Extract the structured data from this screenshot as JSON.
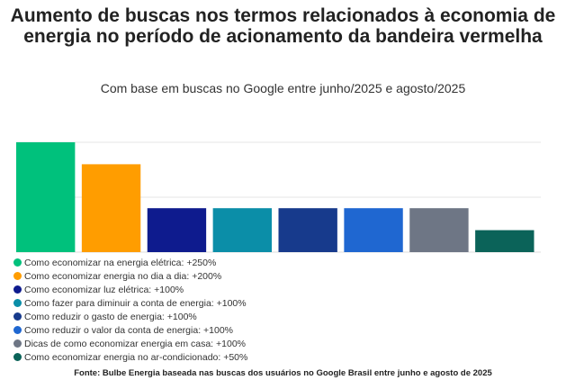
{
  "chart_data": {
    "type": "bar",
    "title": "Aumento de buscas nos termos relacionados à economia de energia no período de acionamento da bandeira vermelha",
    "subtitle": "Com base em buscas no Google entre junho/2025 e agosto/2025",
    "categories": [
      "Como economizar na energia elétrica",
      "Como economizar energia no dia a dia",
      "Como economizar luz elétrica",
      "Como fazer para diminuir a conta de energia",
      "Como reduzir o gasto de energia",
      "Como reduzir o valor da conta de energia",
      "Dicas de como economizar energia em casa",
      "Como economizar energia no ar-condicionado"
    ],
    "values": [
      250,
      200,
      100,
      100,
      100,
      100,
      100,
      50
    ],
    "legend": [
      "Como economizar na energia elétrica: +250%",
      "Como economizar energia no dia a dia: +200%",
      "Como economizar luz elétrica: +100%",
      "Como fazer para diminuir a conta de energia: +100%",
      "Como reduzir o gasto de energia: +100%",
      "Como reduzir o valor da conta de energia: +100%",
      "Dicas de como economizar energia em casa: +100%",
      "Como economizar energia no ar-condicionado: +50%"
    ],
    "colors": [
      "#00c17c",
      "#ff9d00",
      "#0e1b8e",
      "#0b8ea8",
      "#173a8c",
      "#1f67d1",
      "#6e7685",
      "#0b6359"
    ],
    "ylim": [
      0,
      250
    ],
    "grid": true,
    "legend_position": "bottom",
    "source": "Fonte: Bulbe Energia baseada nas buscas dos usuários no Google Brasil entre junho e agosto de 2025"
  }
}
